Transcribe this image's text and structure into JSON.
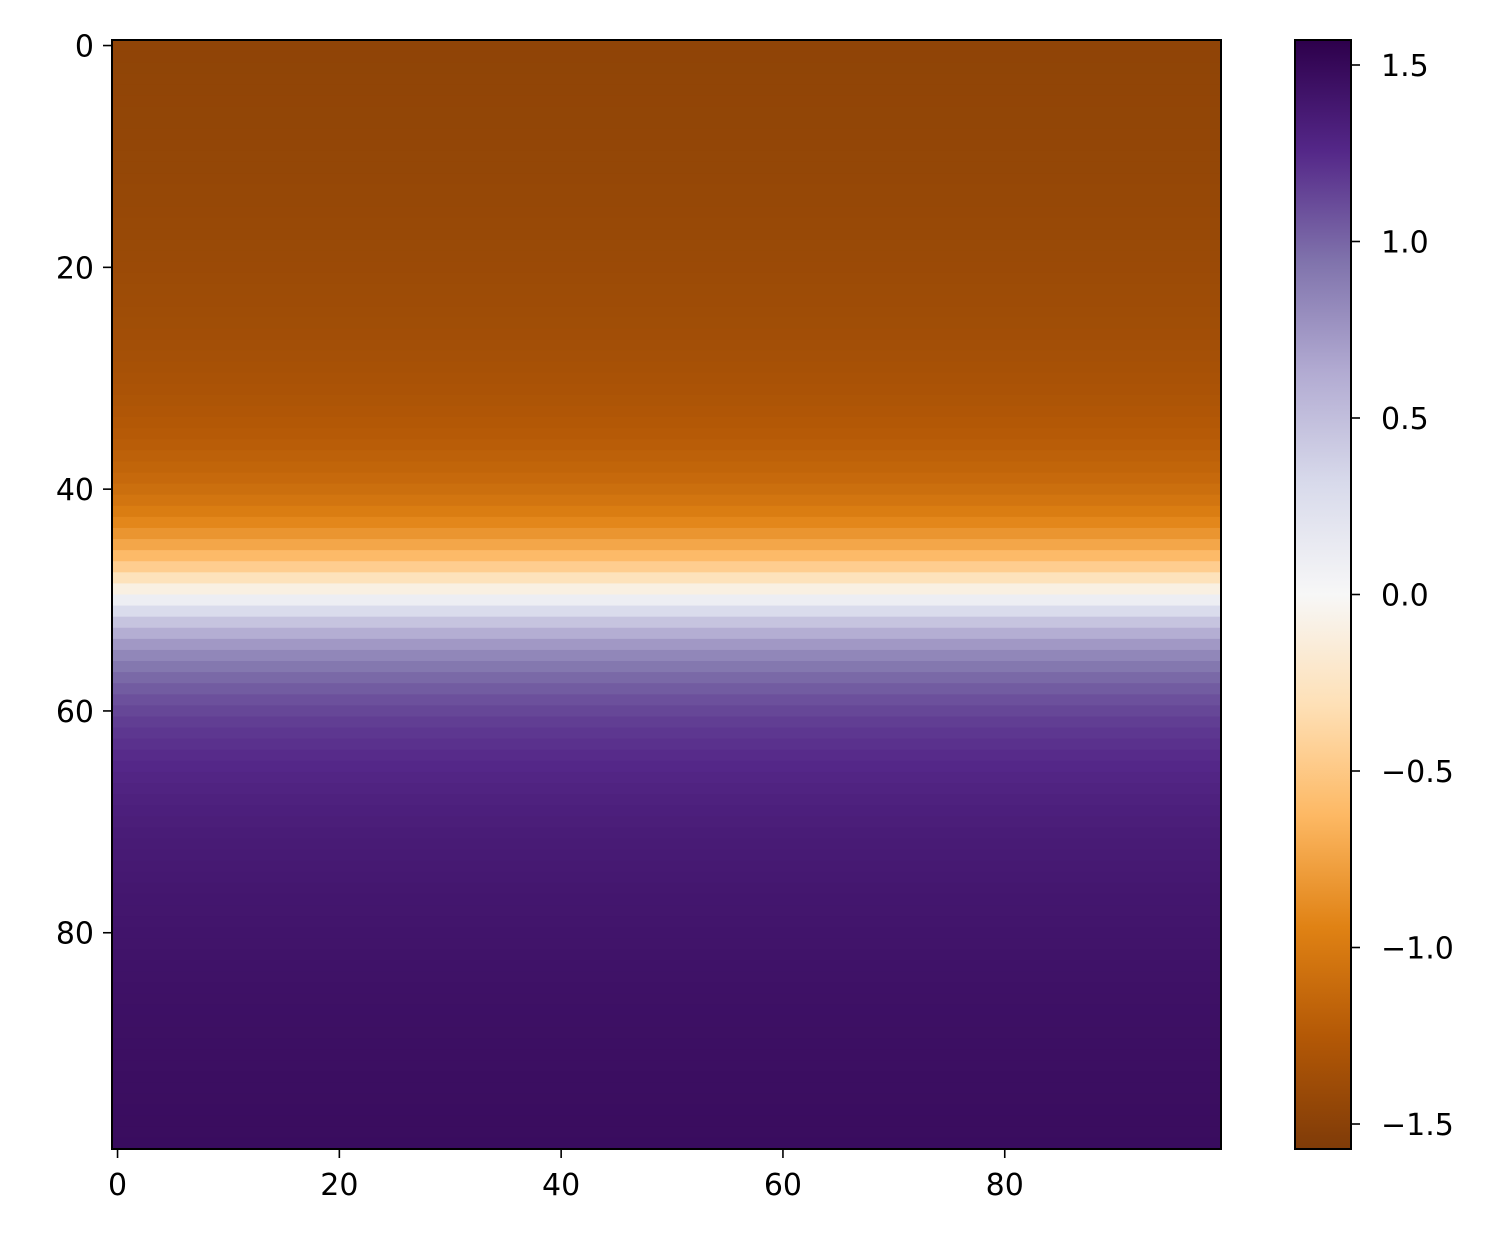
{
  "chart_data": {
    "type": "heatmap",
    "title": "",
    "xlabel": "",
    "ylabel": "",
    "rows": 100,
    "cols": 100,
    "function": "value(row) = arctan(0.2 * (row - 49.5)), constant across columns",
    "xlim": [
      -0.5,
      99.5
    ],
    "ylim": [
      99.5,
      -0.5
    ],
    "x_ticks": [
      0,
      20,
      40,
      60,
      80
    ],
    "x_tick_labels": [
      "0",
      "20",
      "40",
      "60",
      "80"
    ],
    "y_ticks": [
      0,
      20,
      40,
      60,
      80
    ],
    "y_tick_labels": [
      "0",
      "20",
      "40",
      "60",
      "80"
    ],
    "colormap": "PuOr",
    "colormap_stops": [
      "#7f3b08",
      "#b35806",
      "#e08214",
      "#fdb863",
      "#fee0b6",
      "#f7f7f7",
      "#d8daeb",
      "#b2abd2",
      "#8073ac",
      "#542788",
      "#2d004b"
    ],
    "colorbar": {
      "range": [
        -1.5708,
        1.5708
      ],
      "ticks": [
        -1.5,
        -1.0,
        -0.5,
        0.0,
        0.5,
        1.0,
        1.5
      ],
      "tick_labels": [
        "−1.5",
        "−1.0",
        "−0.5",
        "0.0",
        "0.5",
        "1.0",
        "1.5"
      ]
    }
  }
}
